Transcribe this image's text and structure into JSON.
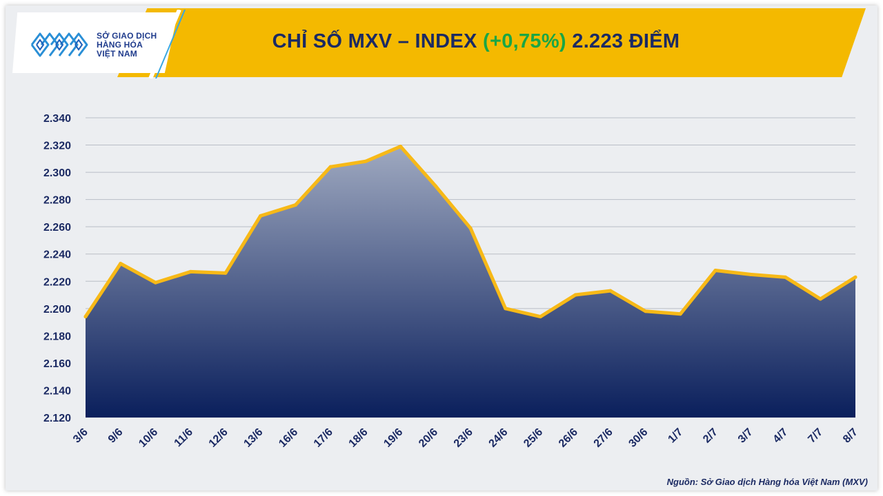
{
  "header": {
    "logo": {
      "line1": "SỞ GIAO DỊCH",
      "line2": "HÀNG HÓA",
      "line3": "VIỆT NAM",
      "icon": "mxv-logo-icon"
    },
    "title_prefix": "CHỈ SỐ MXV – INDEX",
    "title_change": "(+0,75%)",
    "title_suffix": "2.223 ĐIỂM"
  },
  "colors": {
    "banner": "#f4b900",
    "title": "#1b2a63",
    "change_positive": "#1aa645",
    "line": "#f7b917",
    "area_top": "#9fa9c0",
    "area_bottom": "#0a1f5c"
  },
  "chart_data": {
    "type": "area",
    "title": "CHỈ SỐ MXV – INDEX (+0,75%) 2.223 ĐIỂM",
    "xlabel": "",
    "ylabel": "",
    "categories": [
      "3/6",
      "9/6",
      "10/6",
      "11/6",
      "12/6",
      "13/6",
      "16/6",
      "17/6",
      "18/6",
      "19/6",
      "20/6",
      "23/6",
      "24/6",
      "25/6",
      "26/6",
      "27/6",
      "30/6",
      "1/7",
      "2/7",
      "3/7",
      "4/7",
      "7/7",
      "8/7"
    ],
    "values": [
      2194,
      2233,
      2219,
      2227,
      2226,
      2268,
      2276,
      2304,
      2308,
      2319,
      2290,
      2259,
      2200,
      2194,
      2210,
      2213,
      2198,
      2196,
      2228,
      2225,
      2223,
      2207,
      2223
    ],
    "ylim": [
      2120,
      2340
    ],
    "yticks": [
      2120,
      2140,
      2160,
      2180,
      2200,
      2220,
      2240,
      2260,
      2280,
      2300,
      2320,
      2340
    ],
    "ytick_labels": [
      "2.120",
      "2.140",
      "2.160",
      "2.180",
      "2.200",
      "2.220",
      "2.240",
      "2.260",
      "2.280",
      "2.300",
      "2.320",
      "2.340"
    ],
    "grid": true,
    "legend": "none"
  },
  "footer": {
    "source": "Nguồn: Sở Giao dịch Hàng hóa Việt Nam (MXV)"
  }
}
